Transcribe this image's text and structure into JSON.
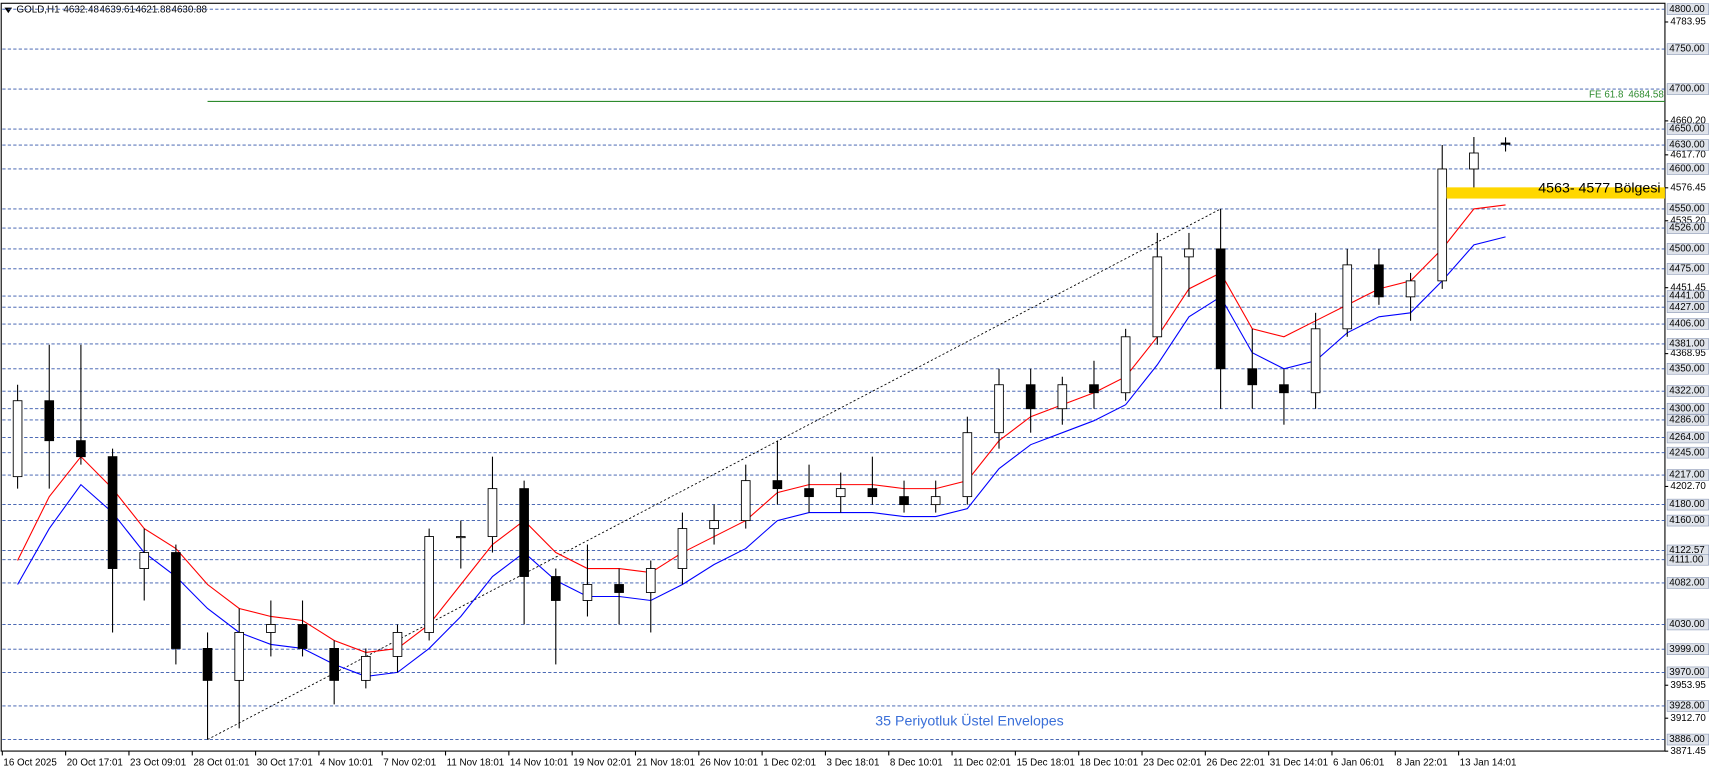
{
  "chart_data": {
    "type": "candlestick",
    "symbol": "GOLD,H1",
    "header_values": [
      4632.48,
      4639.61,
      4621.88,
      4630.88
    ],
    "categories": [
      "16 Oct 2025",
      null,
      "20 Oct 17:01",
      null,
      "23 Oct 09:01",
      null,
      "28 Oct 01:01",
      null,
      "30 Oct 17:01",
      null,
      "4 Nov 10:01",
      null,
      "7 Nov 02:01",
      null,
      "11 Nov 18:01",
      null,
      "14 Nov 10:01",
      null,
      "19 Nov 02:01",
      null,
      "21 Nov 18:01",
      null,
      "26 Nov 10:01",
      null,
      "1 Dec 02:01",
      null,
      "3 Dec 18:01",
      null,
      "8 Dec 10:01",
      null,
      "11 Dec 02:01",
      null,
      "15 Dec 18:01",
      null,
      "18 Dec 10:01",
      null,
      "23 Dec 02:01",
      null,
      "26 Dec 22:01",
      null,
      "31 Dec 14:01",
      null,
      "6 Jan 06:01",
      null,
      "8 Jan 22:01",
      null,
      "13 Jan 14:01",
      null
    ],
    "open": [
      4215,
      4310,
      4260,
      4240,
      4100,
      4120,
      4000,
      3960,
      4020,
      4030,
      4000,
      3960,
      3990,
      4020,
      4140,
      4140,
      4200,
      4090,
      4060,
      4080,
      4070,
      4100,
      4150,
      4160,
      4210,
      4200,
      4190,
      4200,
      4190,
      4180,
      4190,
      4270,
      4330,
      4300,
      4330,
      4320,
      4390,
      4490,
      4500,
      4350,
      4330,
      4320,
      4400,
      4480,
      4440,
      4460,
      4600,
      4632.48
    ],
    "high": [
      4330,
      4380,
      4380,
      4250,
      4150,
      4130,
      4020,
      4050,
      4060,
      4060,
      4010,
      4000,
      4030,
      4150,
      4160,
      4240,
      4210,
      4100,
      4130,
      4100,
      4110,
      4170,
      4180,
      4230,
      4260,
      4230,
      4220,
      4240,
      4210,
      4210,
      4290,
      4350,
      4350,
      4340,
      4360,
      4400,
      4520,
      4520,
      4550,
      4400,
      4350,
      4420,
      4500,
      4500,
      4470,
      4630,
      4640,
      4639.61
    ],
    "low": [
      4200,
      4200,
      4230,
      4020,
      4060,
      3980,
      3886,
      3900,
      3990,
      3990,
      3930,
      3950,
      3970,
      4010,
      4100,
      4120,
      4030,
      3980,
      4040,
      4030,
      4020,
      4080,
      4130,
      4150,
      4180,
      4170,
      4170,
      4180,
      4170,
      4170,
      4180,
      4250,
      4270,
      4280,
      4300,
      4310,
      4380,
      4440,
      4300,
      4300,
      4280,
      4300,
      4390,
      4430,
      4410,
      4450,
      4570,
      4621.88
    ],
    "close": [
      4310,
      4260,
      4240,
      4100,
      4120,
      4000,
      3960,
      4020,
      4030,
      4000,
      3960,
      3990,
      4020,
      4140,
      4140,
      4200,
      4090,
      4060,
      4080,
      4070,
      4100,
      4150,
      4160,
      4210,
      4200,
      4190,
      4200,
      4190,
      4180,
      4190,
      4270,
      4330,
      4300,
      4330,
      4320,
      4390,
      4490,
      4500,
      4350,
      4330,
      4320,
      4400,
      4480,
      4440,
      4460,
      4600,
      4620,
      4630.88
    ],
    "up_color": "#ffffff",
    "down_color": "#000000",
    "envelopes": [
      {
        "color": "#ff0000",
        "values": [
          4110,
          4190,
          4240,
          4200,
          4150,
          4125,
          4080,
          4050,
          4040,
          4035,
          4010,
          3995,
          4000,
          4030,
          4080,
          4130,
          4160,
          4120,
          4100,
          4100,
          4095,
          4120,
          4140,
          4160,
          4195,
          4205,
          4205,
          4205,
          4200,
          4200,
          4210,
          4260,
          4290,
          4305,
          4320,
          4340,
          4390,
          4450,
          4470,
          4400,
          4390,
          4410,
          4430,
          4450,
          4460,
          4500,
          4550,
          4555
        ]
      },
      {
        "color": "#0000ff",
        "values": [
          4080,
          4150,
          4205,
          4170,
          4120,
          4090,
          4050,
          4020,
          4005,
          4000,
          3980,
          3965,
          3970,
          4000,
          4040,
          4090,
          4120,
          4085,
          4065,
          4065,
          4060,
          4080,
          4105,
          4125,
          4160,
          4170,
          4170,
          4170,
          4165,
          4165,
          4175,
          4225,
          4255,
          4270,
          4285,
          4305,
          4355,
          4415,
          4440,
          4370,
          4350,
          4360,
          4395,
          4415,
          4420,
          4460,
          4505,
          4515
        ]
      }
    ],
    "envelope_label": "35 Periyotluk Üstel Envelopes",
    "ylim": [
      3862,
      4806
    ],
    "yticks": [
      {
        "value": 4783.95,
        "label": "4783.95"
      },
      {
        "value": 4660.2,
        "label": "4660.20"
      },
      {
        "value": 4617.7,
        "label": "4617.70"
      },
      {
        "value": 4576.45,
        "label": "4576.45"
      },
      {
        "value": 4535.2,
        "label": "4535.20"
      },
      {
        "value": 4451.45,
        "label": "4451.45"
      },
      {
        "value": 4368.95,
        "label": "4368.95"
      },
      {
        "value": 4202.7,
        "label": "4202.70"
      },
      {
        "value": 3953.95,
        "label": "3953.95"
      },
      {
        "value": 3912.7,
        "label": "3912.70"
      },
      {
        "value": 3871.45,
        "label": "3871.45"
      }
    ],
    "levels": [
      {
        "value": 4800,
        "label": "4800.00"
      },
      {
        "value": 4750,
        "label": "4750.00"
      },
      {
        "value": 4700,
        "label": "4700.00"
      },
      {
        "value": 4650,
        "label": "4650.00"
      },
      {
        "value": 4630,
        "label": "4630.00"
      },
      {
        "value": 4600,
        "label": "4600.00"
      },
      {
        "value": 4550,
        "label": "4550.00"
      },
      {
        "value": 4526,
        "label": "4526.00"
      },
      {
        "value": 4500,
        "label": "4500.00"
      },
      {
        "value": 4475,
        "label": "4475.00"
      },
      {
        "value": 4441,
        "label": "4441.00"
      },
      {
        "value": 4427,
        "label": "4427.00"
      },
      {
        "value": 4406,
        "label": "4406.00"
      },
      {
        "value": 4381,
        "label": "4381.00"
      },
      {
        "value": 4350,
        "label": "4350.00"
      },
      {
        "value": 4322,
        "label": "4322.00"
      },
      {
        "value": 4300,
        "label": "4300.00"
      },
      {
        "value": 4286,
        "label": "4286.00"
      },
      {
        "value": 4264,
        "label": "4264.00"
      },
      {
        "value": 4245,
        "label": "4245.00"
      },
      {
        "value": 4217,
        "label": "4217.00"
      },
      {
        "value": 4180,
        "label": "4180.00"
      },
      {
        "value": 4160,
        "label": "4160.00"
      },
      {
        "value": 4122.57,
        "label": "4122.57"
      },
      {
        "value": 4111,
        "label": "4111.00"
      },
      {
        "value": 4082,
        "label": "4082.00"
      },
      {
        "value": 4030,
        "label": "4030.00"
      },
      {
        "value": 3999,
        "label": "3999.00"
      },
      {
        "value": 3970,
        "label": "3970.00"
      },
      {
        "value": 3928,
        "label": "3928.00"
      },
      {
        "value": 3886,
        "label": "3886.00"
      }
    ],
    "level_color": "#3355aa",
    "fibo": {
      "label": "FE 61.8",
      "value": 4684.58,
      "start": 6,
      "color": "#2e8b2e"
    },
    "zone": {
      "label": "4563- 4577 Bölgesi",
      "low": 4563,
      "high": 4577,
      "start": 45,
      "color": "#ffd700"
    },
    "trendline": {
      "x": [
        6,
        38
      ],
      "values": [
        3886,
        4550
      ]
    }
  }
}
